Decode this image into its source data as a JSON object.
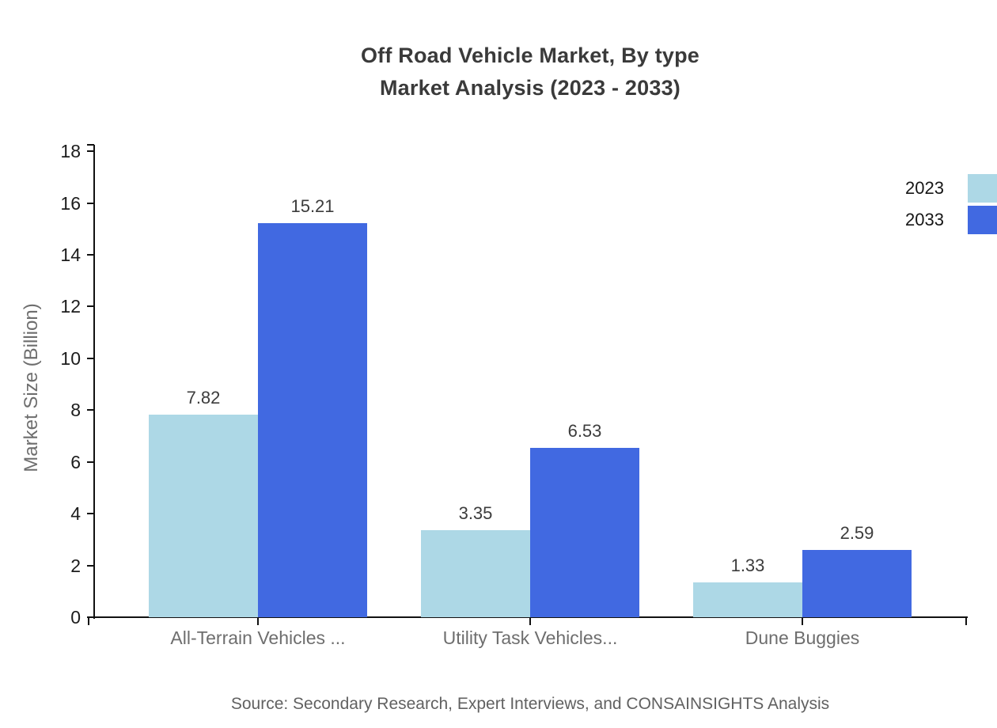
{
  "title": {
    "line1": "Off Road Vehicle Market, By type",
    "line2": "Market Analysis (2023 - 2033)"
  },
  "source": "Source: Secondary Research, Expert Interviews, and CONSAINSIGHTS Analysis",
  "chart_data": {
    "type": "bar",
    "categories": [
      "All-Terrain Vehicles ...",
      "Utility Task Vehicles...",
      "Dune Buggies"
    ],
    "series": [
      {
        "name": "2023",
        "color": "#ADD8E6",
        "values": [
          7.82,
          3.35,
          1.33
        ]
      },
      {
        "name": "2033",
        "color": "#4169E1",
        "values": [
          15.21,
          6.53,
          2.59
        ]
      }
    ],
    "value_labels": [
      "7.82",
      "15.21",
      "3.35",
      "6.53",
      "1.33",
      "2.59"
    ],
    "ylabel": "Market Size (Billion)",
    "xlabel": "",
    "yticks": [
      0,
      2,
      4,
      6,
      8,
      10,
      12,
      14,
      16,
      18
    ],
    "ylim": [
      0,
      18.25
    ],
    "grid": false,
    "legend_position": "top-right",
    "axis_color": "#111111",
    "background": "#ffffff"
  }
}
